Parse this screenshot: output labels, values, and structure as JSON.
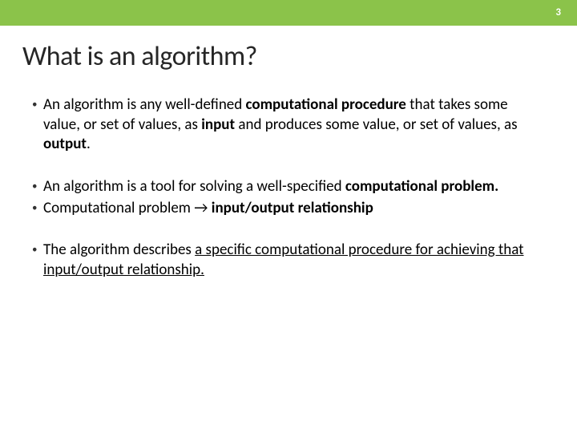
{
  "header": {
    "bg_color": "#8bc34a",
    "text_color": "#ffffff",
    "page_number": "3"
  },
  "title": {
    "text": "What is an algorithm?",
    "color": "#262626",
    "fontsize": 34
  },
  "bullets": {
    "marker": "•",
    "marker_color": "#333333",
    "text_color": "#000000",
    "fontsize": 19,
    "groups": [
      {
        "items": [
          {
            "segments": [
              {
                "text": "An algorithm is any well-defined "
              },
              {
                "text": "computational procedure",
                "bold": true
              },
              {
                "text": " that takes some value, or set of values, as "
              },
              {
                "text": "input",
                "bold": true
              },
              {
                "text": " and produces some value, or set of values, as "
              },
              {
                "text": "output",
                "bold": true
              },
              {
                "text": "."
              }
            ]
          }
        ]
      },
      {
        "items": [
          {
            "segments": [
              {
                "text": "An algorithm is a tool for solving a well-specified "
              },
              {
                "text": "computational problem.",
                "bold": true
              }
            ]
          },
          {
            "segments": [
              {
                "text": "Computational problem → "
              },
              {
                "text": "input/output relationship",
                "bold": true
              }
            ]
          }
        ]
      },
      {
        "items": [
          {
            "segments": [
              {
                "text": "The algorithm describes "
              },
              {
                "text": "a specific computational procedure for achieving that input/output relationship.",
                "underline": true
              }
            ]
          }
        ]
      }
    ]
  }
}
